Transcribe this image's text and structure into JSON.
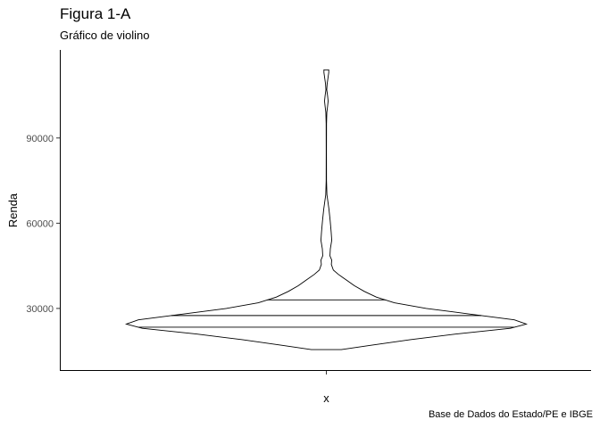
{
  "title": "Figura 1-A",
  "subtitle": "Gráfico de violino",
  "caption": "Base de Dados do Estado/PE e IBGE",
  "chart_data": {
    "type": "violin",
    "title": "Figura 1-A",
    "subtitle": "Gráfico de violino",
    "xlabel": "x",
    "ylabel": "Renda",
    "categories": [
      "x"
    ],
    "ylim": [
      8000,
      121000
    ],
    "yticks": [
      30000,
      60000,
      90000
    ],
    "ytick_labels": [
      "30000",
      "60000",
      "90000"
    ],
    "grid": false,
    "quantiles": [
      23400,
      27500,
      33000
    ],
    "density": [
      {
        "y": 15500,
        "w": 0.075
      },
      {
        "y": 17000,
        "w": 0.22
      },
      {
        "y": 19000,
        "w": 0.42
      },
      {
        "y": 21000,
        "w": 0.65
      },
      {
        "y": 23000,
        "w": 0.92
      },
      {
        "y": 24500,
        "w": 1.0
      },
      {
        "y": 26000,
        "w": 0.94
      },
      {
        "y": 28000,
        "w": 0.72
      },
      {
        "y": 30000,
        "w": 0.5
      },
      {
        "y": 32000,
        "w": 0.34
      },
      {
        "y": 34000,
        "w": 0.25
      },
      {
        "y": 36000,
        "w": 0.19
      },
      {
        "y": 38000,
        "w": 0.14
      },
      {
        "y": 40000,
        "w": 0.1
      },
      {
        "y": 42000,
        "w": 0.06
      },
      {
        "y": 43500,
        "w": 0.035
      },
      {
        "y": 45500,
        "w": 0.025
      },
      {
        "y": 47000,
        "w": 0.027
      },
      {
        "y": 48500,
        "w": 0.018
      },
      {
        "y": 51000,
        "w": 0.02
      },
      {
        "y": 54000,
        "w": 0.027
      },
      {
        "y": 57000,
        "w": 0.024
      },
      {
        "y": 61000,
        "w": 0.019
      },
      {
        "y": 65000,
        "w": 0.013
      },
      {
        "y": 68000,
        "w": 0.007
      },
      {
        "y": 70000,
        "w": 0.003
      },
      {
        "y": 75000,
        "w": 0.0008
      },
      {
        "y": 85000,
        "w": 0.0006
      },
      {
        "y": 95000,
        "w": 0.0009
      },
      {
        "y": 99000,
        "w": 0.0025
      },
      {
        "y": 101000,
        "w": 0.006
      },
      {
        "y": 103000,
        "w": 0.009
      },
      {
        "y": 105000,
        "w": 0.006
      },
      {
        "y": 107000,
        "w": 0.002
      },
      {
        "y": 109000,
        "w": 0.004
      },
      {
        "y": 111000,
        "w": 0.008
      },
      {
        "y": 113000,
        "w": 0.012
      },
      {
        "y": 114000,
        "w": 0.012
      }
    ]
  }
}
